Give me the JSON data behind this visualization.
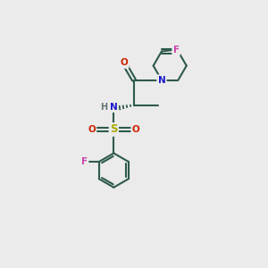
{
  "bg_color": "#ebebeb",
  "bond_color": "#2d5a4a",
  "bond_width": 1.5,
  "fig_size": [
    3.0,
    3.0
  ],
  "dpi": 100,
  "xlim": [
    0,
    10
  ],
  "ylim": [
    0,
    10
  ]
}
